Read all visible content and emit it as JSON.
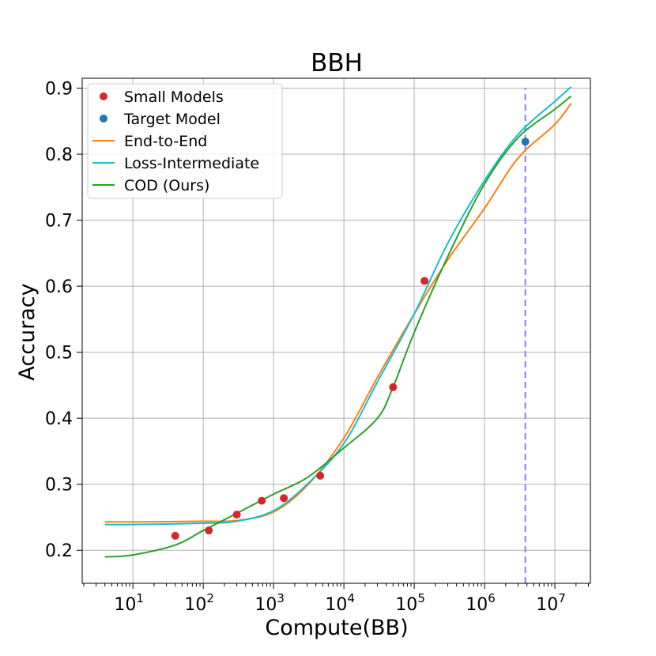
{
  "chart_data": {
    "type": "line",
    "title": "BBH",
    "xlabel": "Compute(BB)",
    "ylabel": "Accuracy",
    "x_scale": "log",
    "xlim": [
      1.9,
      32000000.0
    ],
    "ylim": [
      0.15,
      0.915
    ],
    "x_ticks": [
      {
        "value": 10,
        "base": "10",
        "exp": "1"
      },
      {
        "value": 100,
        "base": "10",
        "exp": "2"
      },
      {
        "value": 1000,
        "base": "10",
        "exp": "3"
      },
      {
        "value": 10000,
        "base": "10",
        "exp": "4"
      },
      {
        "value": 100000,
        "base": "10",
        "exp": "5"
      },
      {
        "value": 1000000,
        "base": "10",
        "exp": "6"
      },
      {
        "value": 10000000,
        "base": "10",
        "exp": "7"
      }
    ],
    "y_ticks": [
      "0.2",
      "0.3",
      "0.4",
      "0.5",
      "0.6",
      "0.7",
      "0.8",
      "0.9"
    ],
    "grid": true,
    "legend_position": "top-left",
    "target_compute_line": {
      "x": 3800000.0,
      "y_range": [
        0.15,
        0.9
      ],
      "color": "#8080ff",
      "style": "dashed"
    },
    "series": [
      {
        "name": "Small Models",
        "kind": "scatter",
        "color": "#d62728",
        "points": [
          [
            40,
            0.222
          ],
          [
            120,
            0.23
          ],
          [
            300,
            0.254
          ],
          [
            680,
            0.275
          ],
          [
            1400,
            0.279
          ],
          [
            4600,
            0.313
          ],
          [
            50000,
            0.447
          ],
          [
            140000,
            0.608
          ]
        ]
      },
      {
        "name": "Target Model",
        "kind": "scatter",
        "color": "#1f77b4",
        "points": [
          [
            3800000.0,
            0.819
          ]
        ]
      },
      {
        "name": "End-to-End",
        "kind": "line",
        "color": "#ff7f0e",
        "points": [
          [
            4,
            0.243
          ],
          [
            10,
            0.243
          ],
          [
            100,
            0.244
          ],
          [
            300,
            0.245
          ],
          [
            1000,
            0.258
          ],
          [
            3000,
            0.298
          ],
          [
            10000,
            0.37
          ],
          [
            30000,
            0.462
          ],
          [
            100000,
            0.558
          ],
          [
            300000,
            0.64
          ],
          [
            1000000,
            0.718
          ],
          [
            3000000,
            0.794
          ],
          [
            10000000.0,
            0.845
          ],
          [
            17000000.0,
            0.877
          ]
        ]
      },
      {
        "name": "Loss-Intermediate",
        "kind": "line",
        "color": "#17becf",
        "points": [
          [
            4,
            0.239
          ],
          [
            10,
            0.239
          ],
          [
            100,
            0.241
          ],
          [
            300,
            0.244
          ],
          [
            1000,
            0.26
          ],
          [
            3000,
            0.3
          ],
          [
            10000,
            0.362
          ],
          [
            30000,
            0.455
          ],
          [
            100000,
            0.558
          ],
          [
            300000,
            0.665
          ],
          [
            1000000,
            0.76
          ],
          [
            3000000,
            0.83
          ],
          [
            10000000.0,
            0.88
          ],
          [
            17000000.0,
            0.902
          ]
        ]
      },
      {
        "name": "COD (Ours)",
        "kind": "line",
        "color": "#2ca02c",
        "points": [
          [
            4,
            0.19
          ],
          [
            10,
            0.193
          ],
          [
            40,
            0.208
          ],
          [
            100,
            0.23
          ],
          [
            300,
            0.256
          ],
          [
            1000,
            0.285
          ],
          [
            3000,
            0.31
          ],
          [
            10000,
            0.355
          ],
          [
            30000,
            0.4
          ],
          [
            50000,
            0.447
          ],
          [
            100000,
            0.53
          ],
          [
            300000,
            0.645
          ],
          [
            1000000,
            0.755
          ],
          [
            3000000,
            0.825
          ],
          [
            10000000.0,
            0.868
          ],
          [
            17000000.0,
            0.888
          ]
        ]
      }
    ]
  }
}
